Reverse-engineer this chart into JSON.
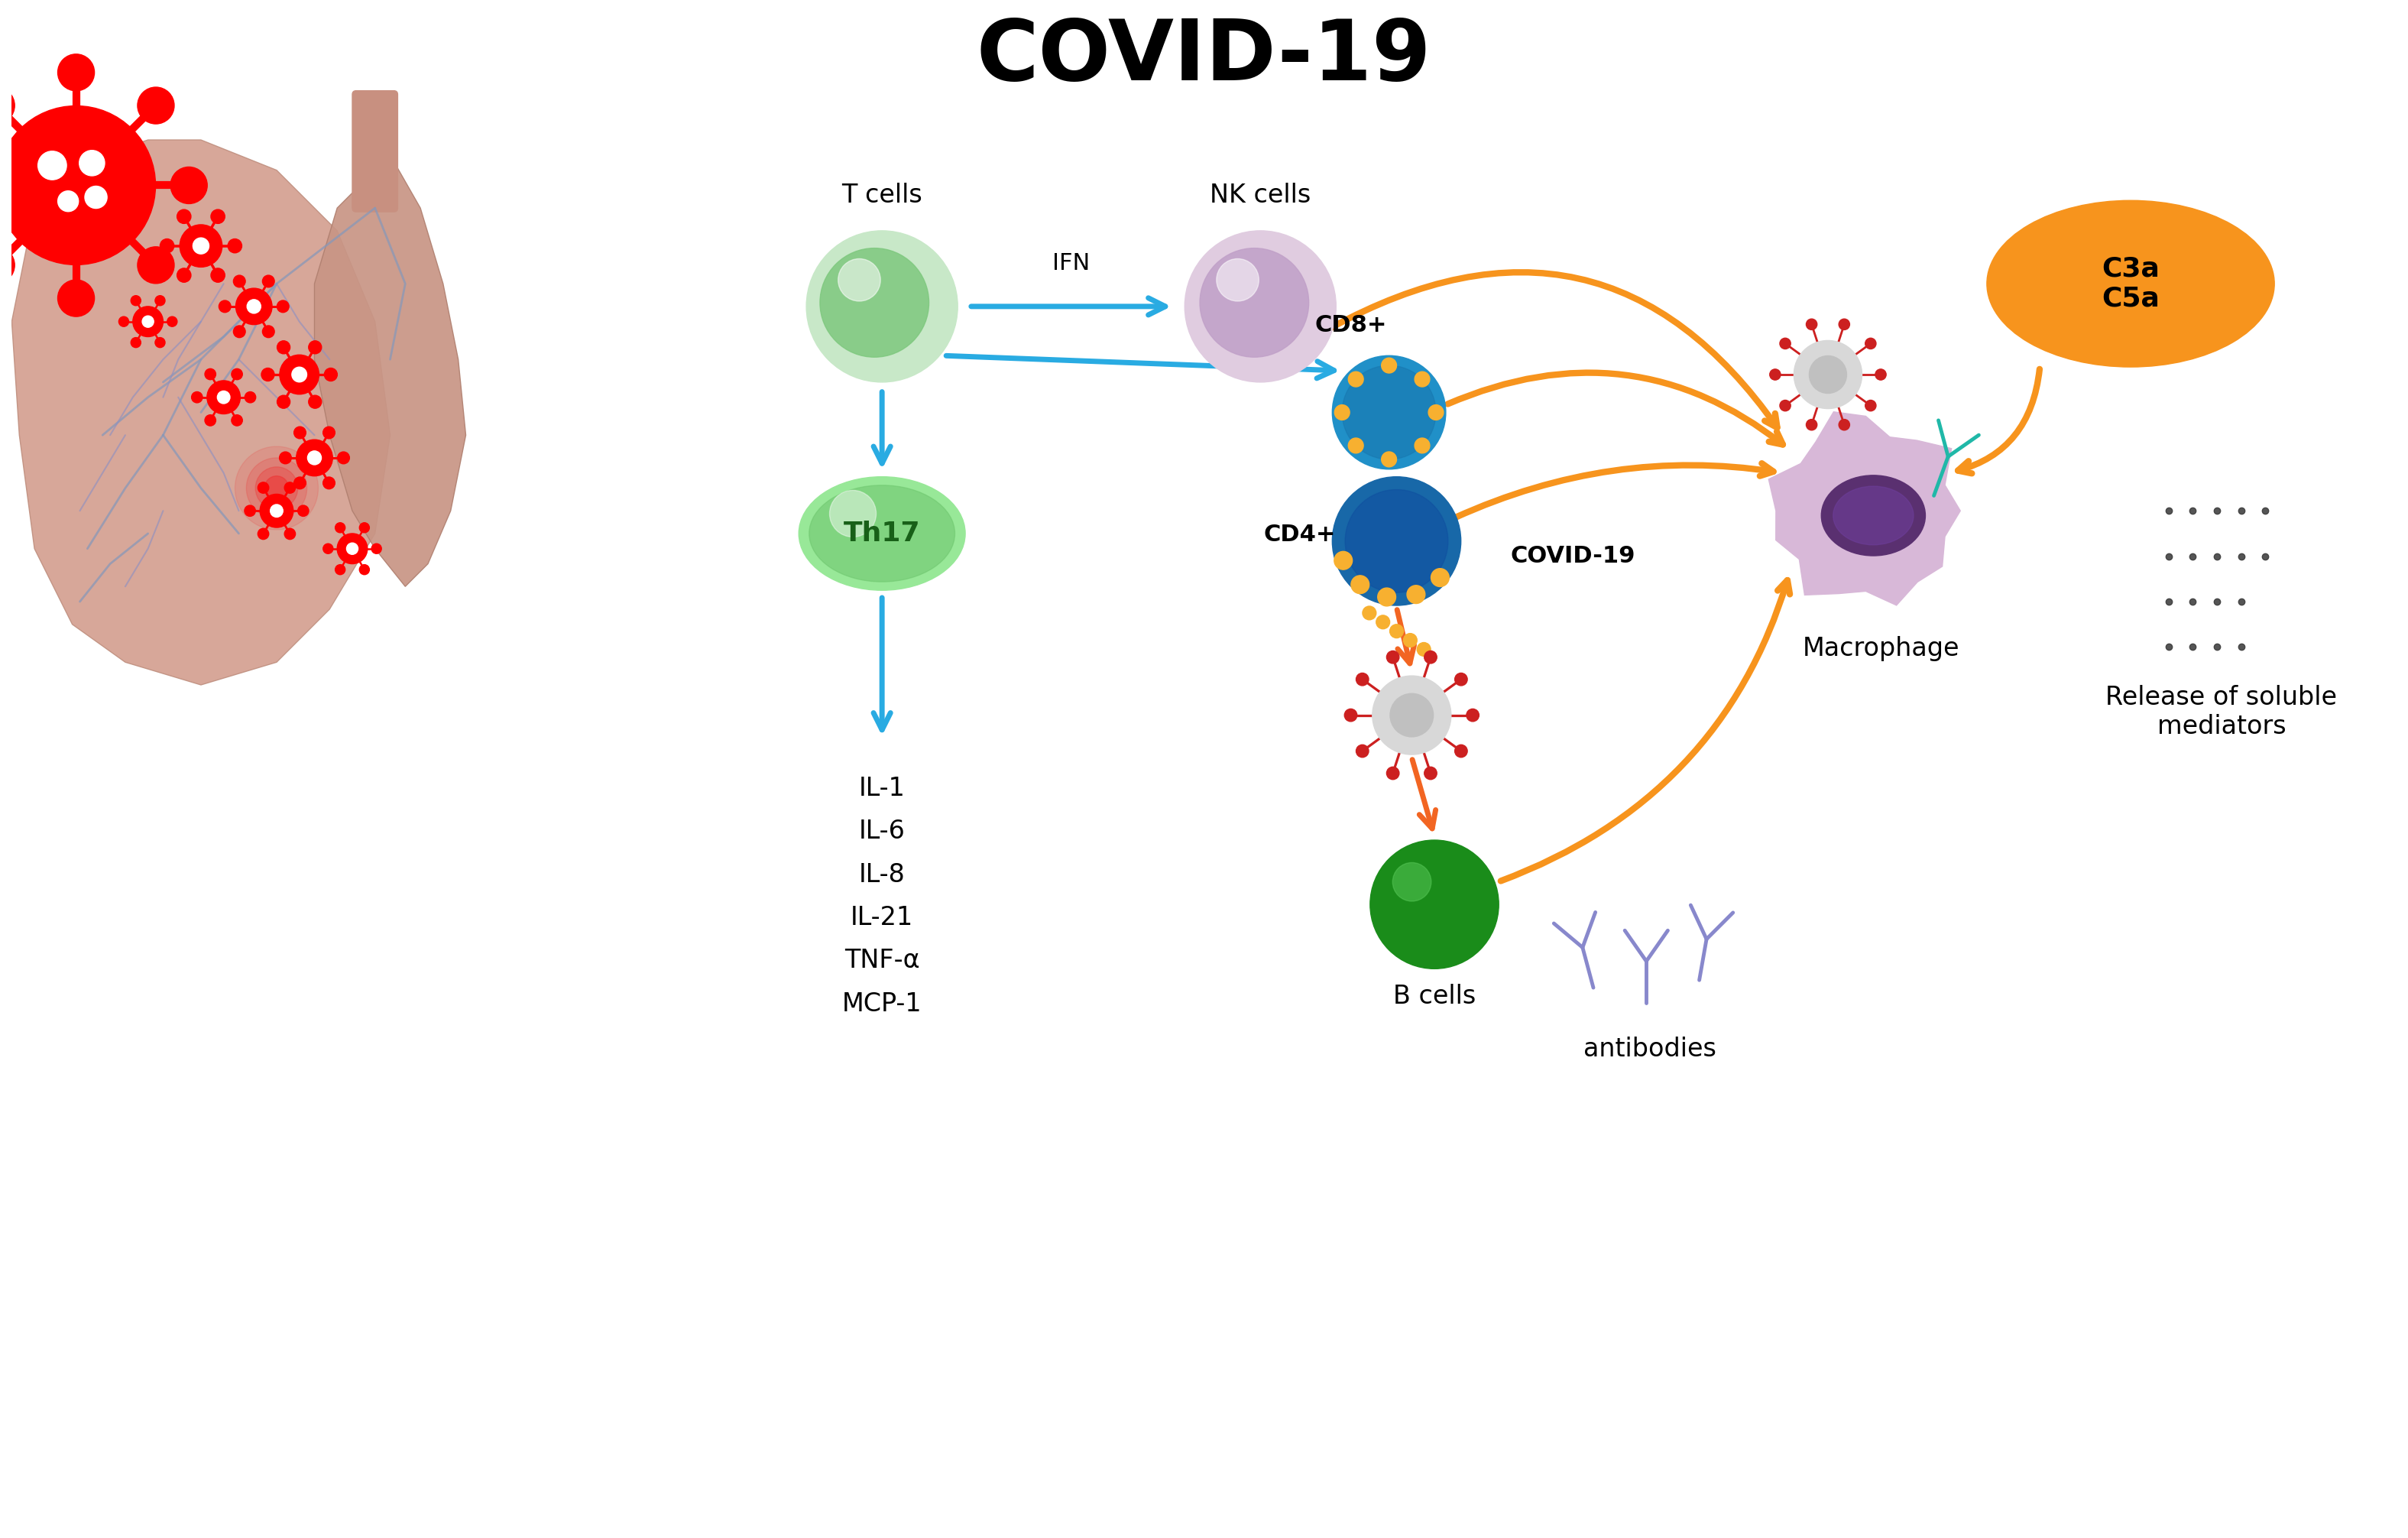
{
  "title": "COVID-19",
  "title_fontsize": 80,
  "title_fontweight": "bold",
  "background_color": "#ffffff",
  "texts": {
    "t_cells": "T cells",
    "nk_cells": "NK cells",
    "ifn": "IFN",
    "cd8": "CD8+",
    "cd4": "CD4+",
    "th17": "Th17",
    "covid19_label": "COVID-19",
    "b_cells": "B cells",
    "macrophage": "Macrophage",
    "antibodies": "antibodies",
    "c3a_c5a": "C3a\nC5a",
    "release": "Release of soluble\nmediators",
    "cytokines": "IL-1\nIL-6\nIL-8\nIL-21\nTNF-α\nMCP-1"
  }
}
